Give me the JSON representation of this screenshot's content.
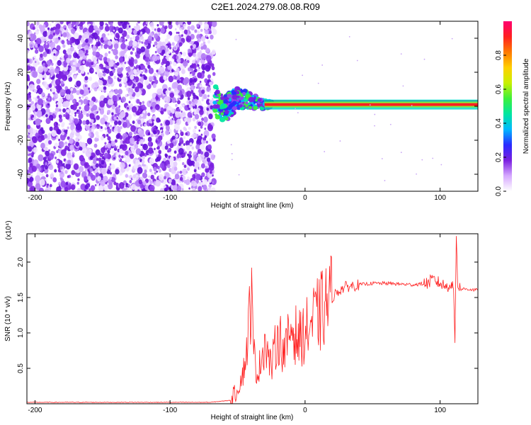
{
  "title": "C2E1.2024.279.08.08.R09",
  "chart_data": [
    {
      "type": "heatmap",
      "xlabel": "Height of straight line (km)",
      "ylabel": "Frequency (Hz)",
      "xlim": [
        -206,
        128
      ],
      "ylim": [
        -50,
        50
      ],
      "xticks": [
        -200,
        -100,
        0,
        100
      ],
      "yticks": [
        -40,
        -20,
        0,
        20,
        40
      ],
      "grid": false,
      "colorbar": {
        "label": "Normalized spectral amplitude",
        "range": [
          0,
          1
        ],
        "ticks": [
          "0.0",
          "0.2",
          "0.4",
          "0.6",
          "0.8"
        ],
        "colors": [
          "#ffffff",
          "#d6a8ff",
          "#7a1fe0",
          "#2a2aff",
          "#00b8ff",
          "#00e6a0",
          "#3cf03c",
          "#c8f000",
          "#ffd000",
          "#ff7a00",
          "#ff2020",
          "#ff0070"
        ]
      },
      "noise_region_x": [
        -206,
        -67
      ],
      "transition_region_x": [
        -67,
        -25
      ],
      "carrier": {
        "x": [
          -67,
          -60,
          -50,
          -40,
          -30,
          -20,
          -10,
          0,
          20,
          50,
          100,
          128
        ],
        "freq": [
          4,
          -2,
          5,
          3,
          1,
          1,
          1,
          1,
          1,
          1,
          1,
          1
        ]
      }
    },
    {
      "type": "line",
      "xlabel": "Height of straight line (km)",
      "ylabel": "SNR (10 * v/v)",
      "y_multiplier": "(x10⁴)",
      "xlim": [
        -206,
        128
      ],
      "ylim": [
        0,
        2.4
      ],
      "xticks": [
        -200,
        -100,
        0,
        100
      ],
      "yticks": [
        0.5,
        1.0,
        1.5,
        2.0
      ],
      "ytick_labels": [
        "0.5",
        "1.0",
        "1.5",
        "2.0"
      ],
      "grid": false,
      "series": [
        {
          "color": "#ff2020",
          "x": [
            -206,
            -70,
            -55,
            -50,
            -45,
            -42,
            -40,
            -38,
            -35,
            -30,
            -25,
            -20,
            -15,
            -10,
            -5,
            0,
            5,
            10,
            15,
            20,
            25,
            30,
            40,
            50,
            60,
            70,
            80,
            90,
            95,
            100,
            105,
            108,
            110,
            111,
            112,
            113,
            115,
            120,
            128
          ],
          "y": [
            0.02,
            0.02,
            0.05,
            0.2,
            0.5,
            1.0,
            1.6,
            0.7,
            0.4,
            0.9,
            0.5,
            1.0,
            0.7,
            1.1,
            0.9,
            1.0,
            1.15,
            1.25,
            1.38,
            1.5,
            1.6,
            1.65,
            1.68,
            1.7,
            1.7,
            1.69,
            1.68,
            1.7,
            1.75,
            1.7,
            1.65,
            1.7,
            1.6,
            0.9,
            2.4,
            1.7,
            1.62,
            1.62,
            1.6
          ]
        }
      ]
    }
  ]
}
